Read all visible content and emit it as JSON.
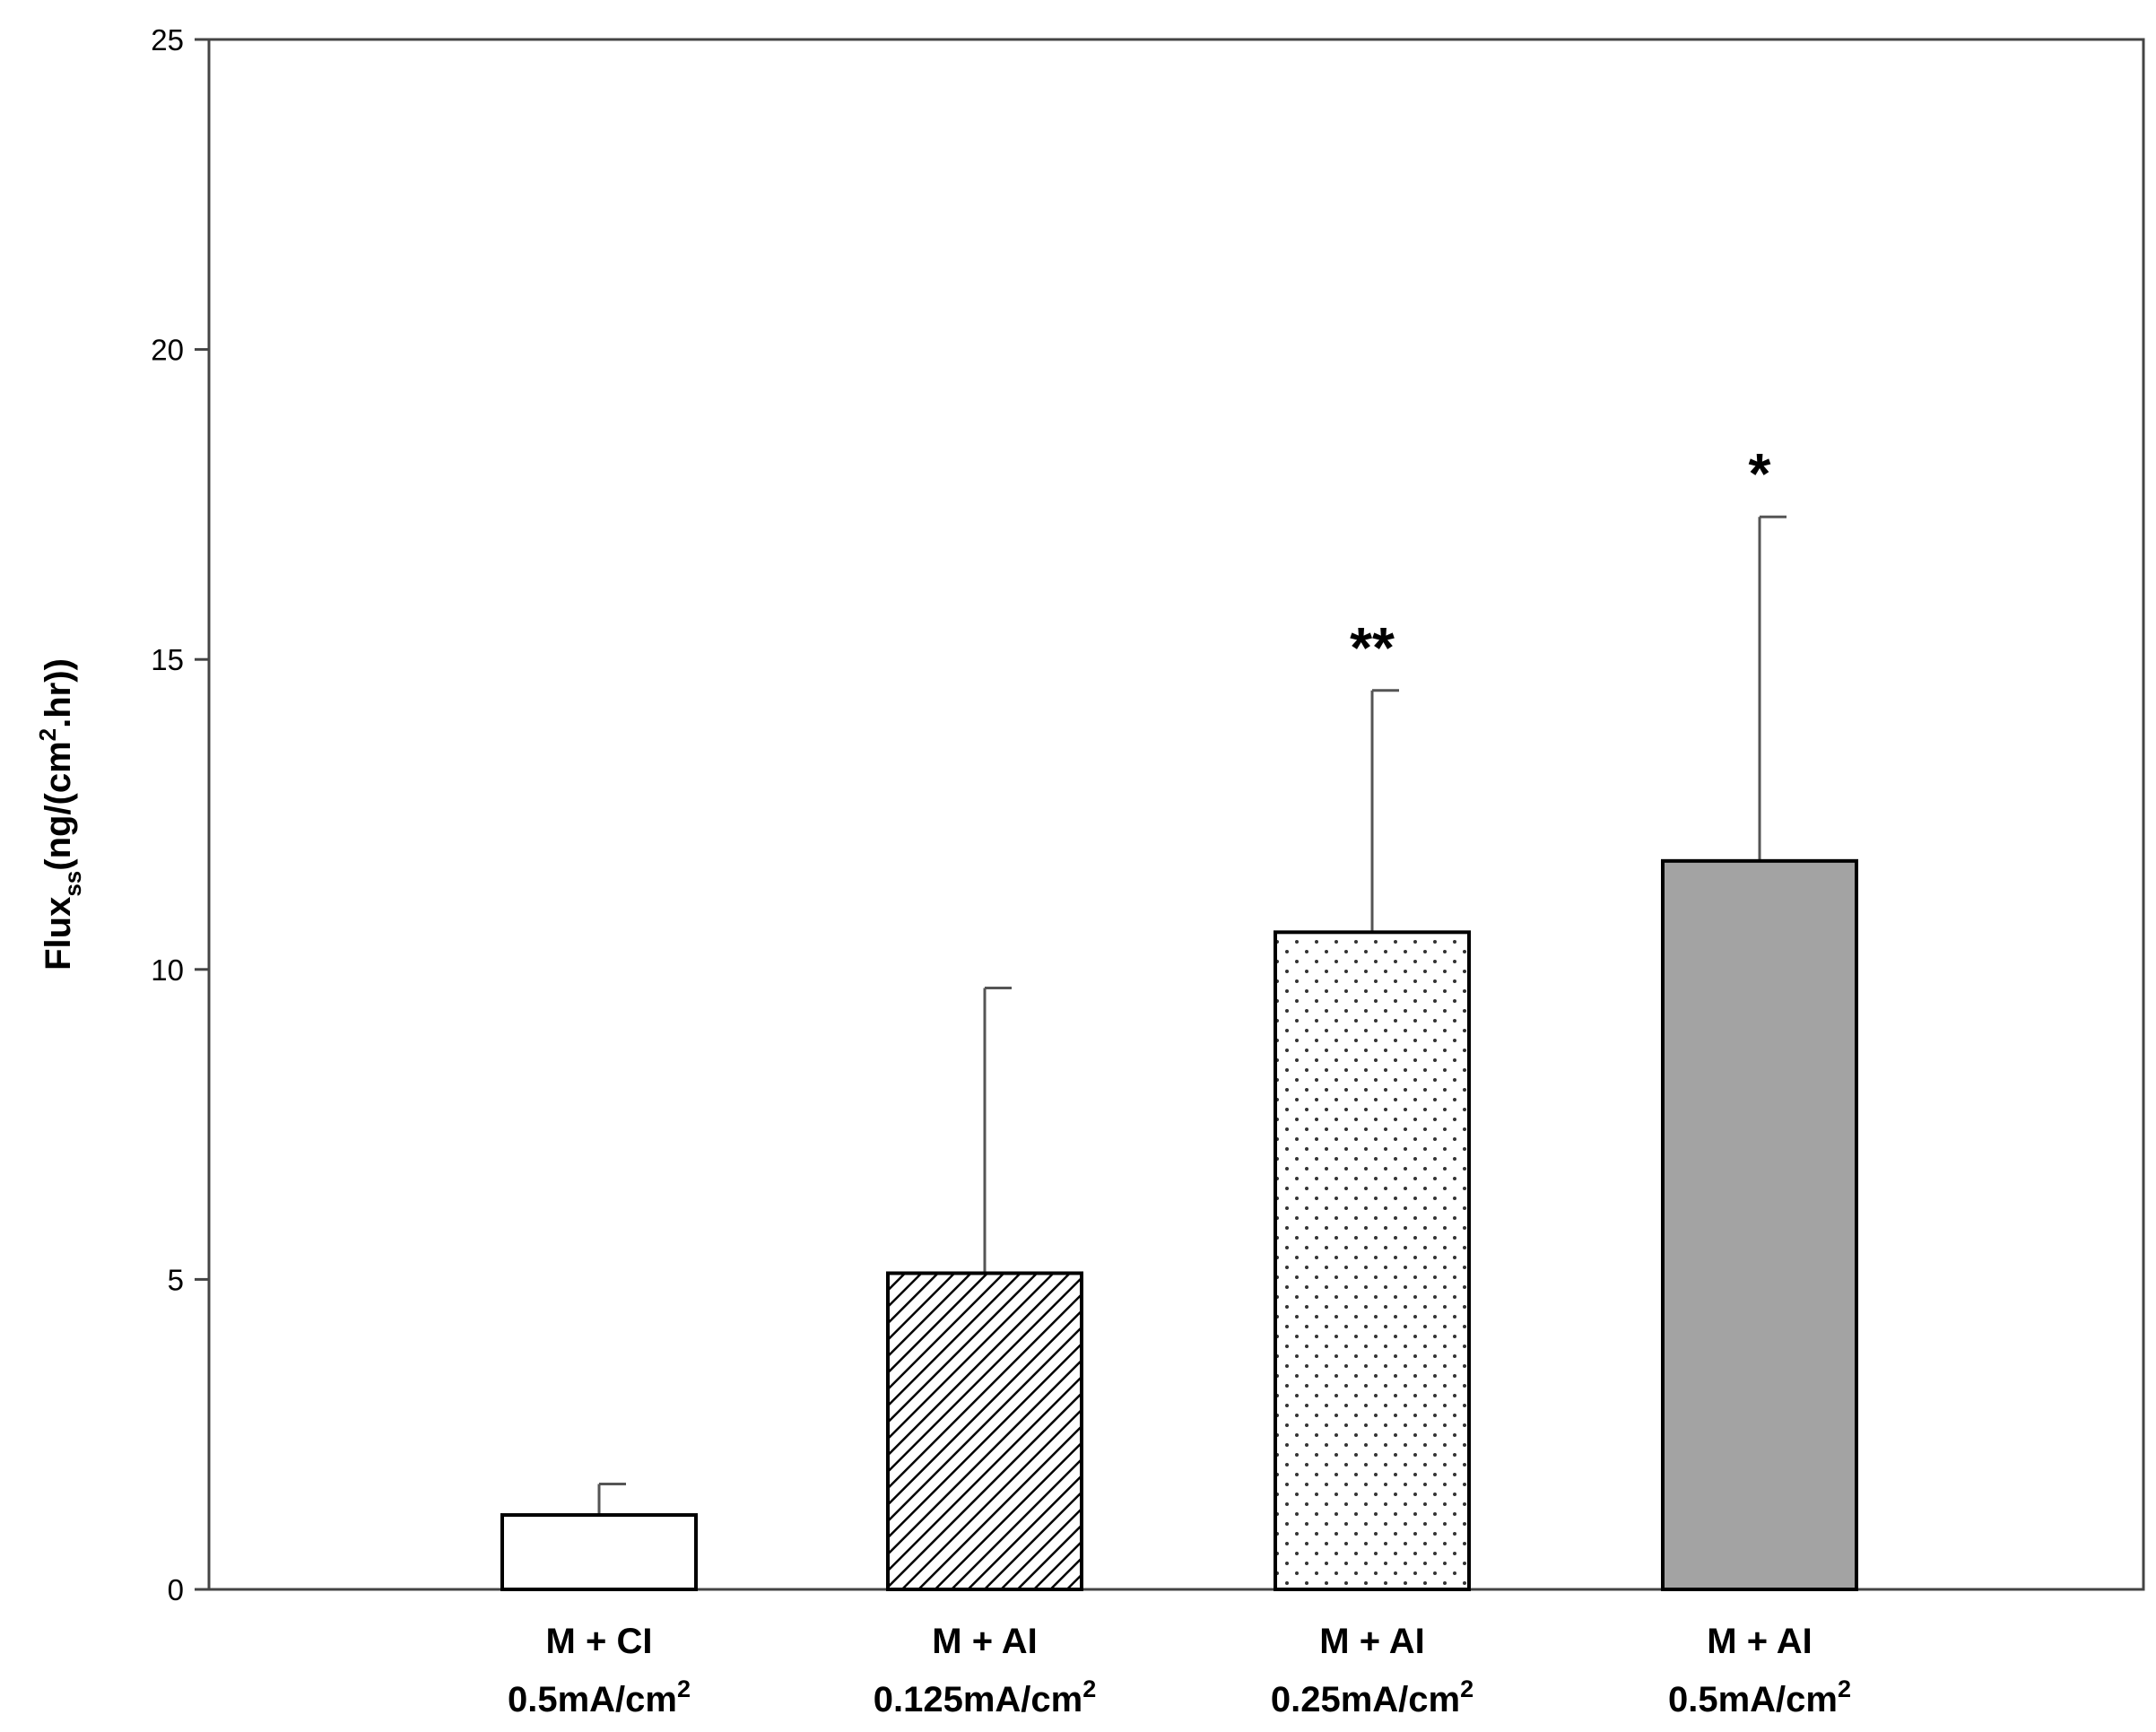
{
  "chart_data": {
    "type": "bar",
    "title": "",
    "categories": [
      {
        "line1": "M + CI",
        "line2": "0.5mA/cm",
        "sup": "2"
      },
      {
        "line1": "M + AI",
        "line2": "0.125mA/cm",
        "sup": "2"
      },
      {
        "line1": "M + AI",
        "line2": "0.25mA/cm",
        "sup": "2"
      },
      {
        "line1": "M + AI",
        "line2": "0.5mA/cm",
        "sup": "2"
      }
    ],
    "values": [
      1.2,
      5.1,
      10.6,
      11.75
    ],
    "error_upper": [
      1.7,
      9.7,
      14.5,
      17.3
    ],
    "bar_fills": [
      "white",
      "diagonal-hatch",
      "dotted",
      "gray"
    ],
    "colors": {
      "gray_fill": "#a3a3a3",
      "stroke": "#000000",
      "error_bar": "#555555"
    },
    "significance": [
      "",
      "",
      "**",
      "*"
    ],
    "ylabel": {
      "main": "Flux",
      "sub": "ss",
      "unit_pre": "(ng/(cm",
      "unit_sup": "2",
      "unit_post": ".hr))"
    },
    "xlabel": "",
    "ylim": [
      0,
      25
    ],
    "yticks": [
      0,
      5,
      10,
      15,
      20,
      25
    ],
    "grid": false,
    "legend": "none"
  }
}
